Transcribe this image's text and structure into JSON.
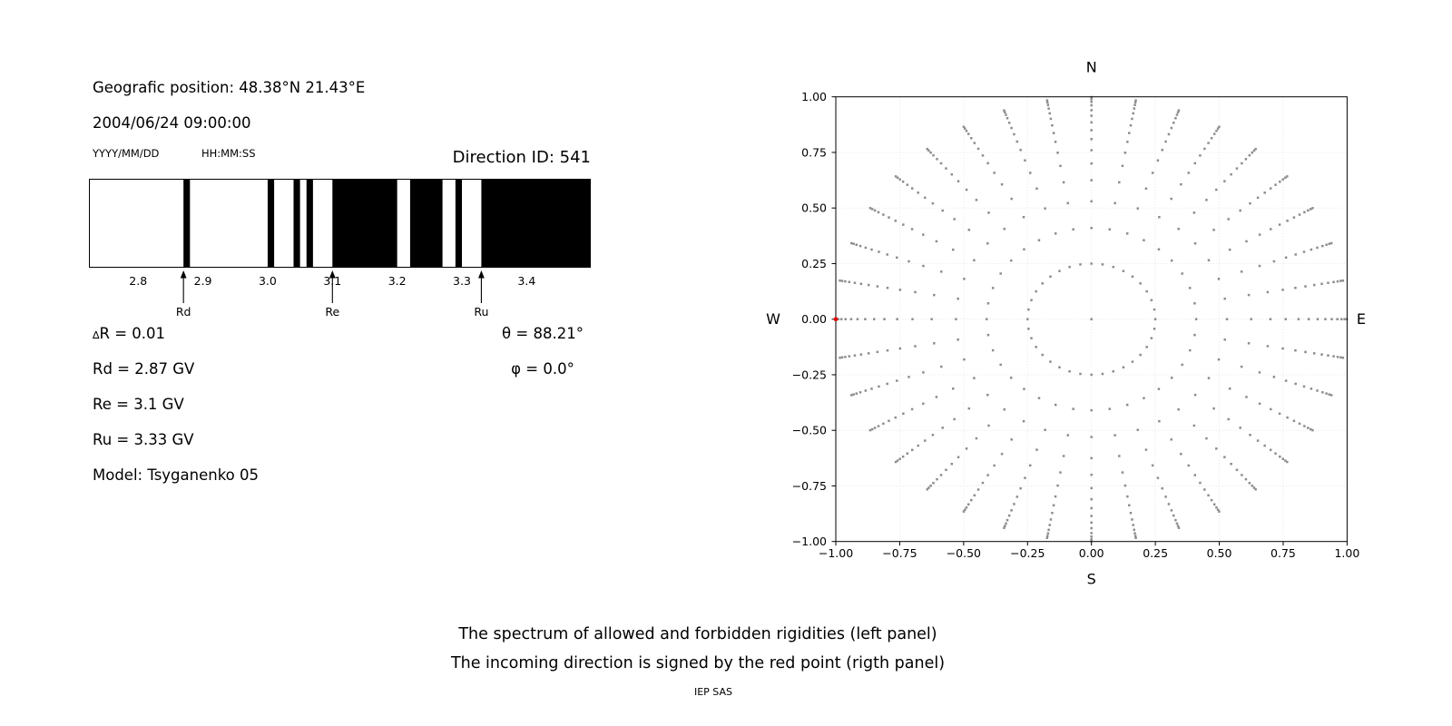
{
  "header": {
    "geo_position": "Geografic position: 48.38°N 21.43°E",
    "datetime": "2004/06/24 09:00:00",
    "date_format_label": "YYYY/MM/DD",
    "time_format_label": "HH:MM:SS",
    "direction_id": "Direction ID: 541"
  },
  "parameters": {
    "delta_symbol": "∆",
    "delta_r_rest": "R = 0.01",
    "rd": "Rd = 2.87 GV",
    "re": "Re = 3.1 GV",
    "ru": "Ru = 3.33 GV",
    "model": "Model: Tsyganenko 05",
    "theta": "θ = 88.21°",
    "phi": "φ = 0.0°"
  },
  "caption": {
    "line1": "The spectrum of allowed and forbidden rigidities (left panel)",
    "line2": "The incoming direction is signed by the red point (rigth panel)",
    "credit": "IEP SAS"
  },
  "chart_data": [
    {
      "id": "rigidity_spectrum",
      "type": "bar",
      "panel": "left",
      "description": "Barcode-style spectrum: black = forbidden rigidity, white = allowed rigidity",
      "xlim": [
        2.724,
        3.499
      ],
      "xticks": [
        {
          "value": 2.8,
          "label": "2.8"
        },
        {
          "value": 2.9,
          "label": "2.9"
        },
        {
          "value": 3.0,
          "label": "3.0"
        },
        {
          "value": 3.1,
          "label": "3.1"
        },
        {
          "value": 3.2,
          "label": "3.2"
        },
        {
          "value": 3.3,
          "label": "3.3"
        },
        {
          "value": 3.4,
          "label": "3.4"
        }
      ],
      "delta_r_gv": 0.01,
      "forbidden_intervals_gv": [
        [
          2.87,
          2.88
        ],
        [
          3.0,
          3.01
        ],
        [
          3.04,
          3.05
        ],
        [
          3.06,
          3.07
        ],
        [
          3.1,
          3.2
        ],
        [
          3.22,
          3.27
        ],
        [
          3.29,
          3.3
        ],
        [
          3.33,
          3.499
        ]
      ],
      "forbidden_color": "#000000",
      "allowed_color": "#ffffff",
      "cutoff_markers": [
        {
          "label": "Rd",
          "value_gv": 2.87
        },
        {
          "label": "Re",
          "value_gv": 3.1
        },
        {
          "label": "Ru",
          "value_gv": 3.33
        }
      ]
    },
    {
      "id": "incoming_directions",
      "type": "scatter",
      "panel": "right",
      "description": "Direction grid: 36 azimuths x 15 zenith rings + center point = 541 directions; red point marks the incoming direction",
      "xlim": [
        -1,
        1
      ],
      "ylim": [
        -1,
        1
      ],
      "xticks": [
        {
          "value": -1.0,
          "label": "−1.00"
        },
        {
          "value": -0.75,
          "label": "−0.75"
        },
        {
          "value": -0.5,
          "label": "−0.50"
        },
        {
          "value": -0.25,
          "label": "−0.25"
        },
        {
          "value": 0.0,
          "label": "0.00"
        },
        {
          "value": 0.25,
          "label": "0.25"
        },
        {
          "value": 0.5,
          "label": "0.50"
        },
        {
          "value": 0.75,
          "label": "0.75"
        },
        {
          "value": 1.0,
          "label": "1.00"
        }
      ],
      "yticks": [
        {
          "value": 1.0,
          "label": "1.00"
        },
        {
          "value": 0.75,
          "label": "0.75"
        },
        {
          "value": 0.5,
          "label": "0.50"
        },
        {
          "value": 0.25,
          "label": "0.25"
        },
        {
          "value": 0.0,
          "label": "0.00"
        },
        {
          "value": -0.25,
          "label": "−0.25"
        },
        {
          "value": -0.5,
          "label": "−0.50"
        },
        {
          "value": -0.75,
          "label": "−0.75"
        },
        {
          "value": -1.0,
          "label": "−1.00"
        }
      ],
      "compass": {
        "top": "N",
        "bottom": "S",
        "left": "W",
        "right": "E"
      },
      "grid": {
        "show": true,
        "step": 0.25,
        "color": "#e7e7e7"
      },
      "points": {
        "marker": "square",
        "color": "#8d8d8d",
        "azimuth_start_deg": 0,
        "azimuth_step_deg": 10,
        "azimuth_count": 36,
        "ring_radii": [
          0.25,
          0.41,
          0.53,
          0.625,
          0.7,
          0.76,
          0.81,
          0.85,
          0.885,
          0.915,
          0.94,
          0.962,
          0.978,
          0.99,
          0.999
        ],
        "center_point": [
          0,
          0
        ],
        "total_points": 541
      },
      "red_point": {
        "x": -1.0,
        "y": 0.0,
        "color": "#e60000"
      }
    }
  ]
}
